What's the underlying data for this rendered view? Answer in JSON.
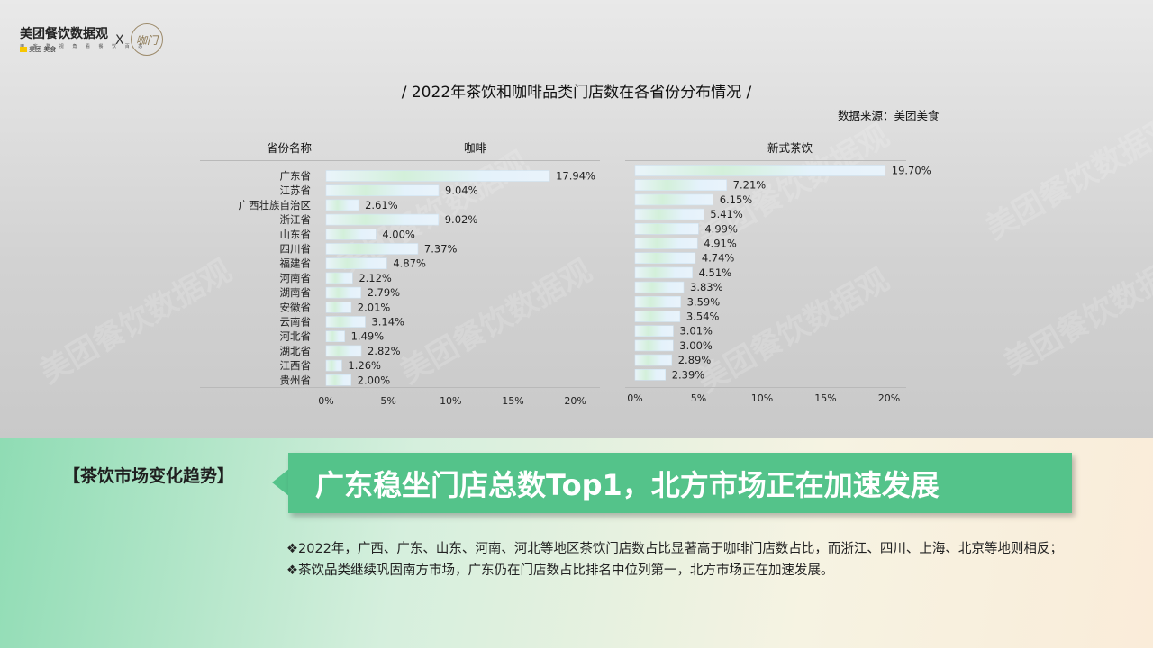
{
  "header": {
    "logo_text": "美团餐饮数据观",
    "logo_subtext": "用 客 群 视 角 看 餐 饮 百 态",
    "logo_badge": "美团·美食",
    "x_mark": "X",
    "partner_logo_text": "咖门"
  },
  "title": "/ 2022年茶饮和咖啡品类门店数在各省份分布情况 /",
  "source": "数据来源：美团美食",
  "col_headers": {
    "province": "省份名称",
    "coffee": "咖啡",
    "tea": "新式茶饮"
  },
  "chart_data": [
    {
      "type": "bar",
      "orientation": "horizontal",
      "title": "咖啡",
      "categories": [
        "广东省",
        "江苏省",
        "广西壮族自治区",
        "浙江省",
        "山东省",
        "四川省",
        "福建省",
        "河南省",
        "湖南省",
        "安徽省",
        "云南省",
        "河北省",
        "湖北省",
        "江西省",
        "贵州省"
      ],
      "values": [
        17.94,
        9.04,
        2.61,
        9.02,
        4.0,
        7.37,
        4.87,
        2.12,
        2.79,
        2.01,
        3.14,
        1.49,
        2.82,
        1.26,
        2.0
      ],
      "value_labels": [
        "17.94%",
        "9.04%",
        "2.61%",
        "9.02%",
        "4.00%",
        "7.37%",
        "4.87%",
        "2.12%",
        "2.79%",
        "2.01%",
        "3.14%",
        "1.49%",
        "2.82%",
        "1.26%",
        "2.00%"
      ],
      "xlim": [
        0,
        20
      ],
      "xticks": [
        "0%",
        "5%",
        "10%",
        "15%",
        "20%"
      ],
      "grid": false
    },
    {
      "type": "bar",
      "orientation": "horizontal",
      "title": "新式茶饮",
      "values": [
        19.7,
        7.21,
        6.15,
        5.41,
        4.99,
        4.91,
        4.74,
        4.51,
        3.83,
        3.59,
        3.54,
        3.01,
        3.0,
        2.89,
        2.39
      ],
      "value_labels": [
        "19.70%",
        "7.21%",
        "6.15%",
        "5.41%",
        "4.99%",
        "4.91%",
        "4.74%",
        "4.51%",
        "3.83%",
        "3.59%",
        "3.54%",
        "3.01%",
        "3.00%",
        "2.89%",
        "2.39%"
      ],
      "xlim": [
        0,
        20
      ],
      "xticks": [
        "0%",
        "5%",
        "10%",
        "15%",
        "20%"
      ],
      "grid": false
    }
  ],
  "colors": {
    "bar": "#e2f1fb",
    "bar_edge": "#cfe3f2",
    "bar_tint": "#bfe9c8",
    "banner": "#54c38a"
  },
  "bottom": {
    "section_label": "【茶饮市场变化趋势】",
    "headline": "广东稳坐门店总数Top1，北方市场正在加速发展",
    "bullets": [
      "❖2022年，广西、广东、山东、河南、河北等地区茶饮门店数占比显著高于咖啡门店数占比，而浙江、四川、上海、北京等地则相反；",
      "❖茶饮品类继续巩固南方市场，广东仍在门店数占比排名中位列第一，北方市场正在加速发展。"
    ]
  }
}
